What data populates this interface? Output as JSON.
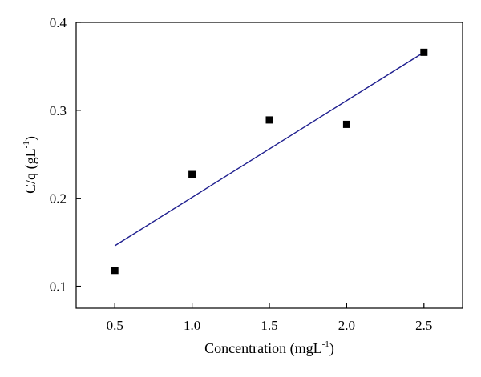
{
  "chart_data": {
    "type": "scatter",
    "xlabel": "Concentration (mgL",
    "xlabel_sup": "-1",
    "xlabel_end": ")",
    "ylabel": "C/q (gL",
    "ylabel_sup": "-1",
    "ylabel_end": ")",
    "xlim": [
      0.25,
      2.75
    ],
    "ylim": [
      0.075,
      0.4
    ],
    "x_ticks": [
      0.5,
      1.0,
      1.5,
      2.0,
      2.5
    ],
    "x_tick_labels": [
      "0.5",
      "1.0",
      "1.5",
      "2.0",
      "2.5"
    ],
    "y_ticks": [
      0.1,
      0.2,
      0.3,
      0.4
    ],
    "y_tick_labels": [
      "0.1",
      "0.2",
      "0.3",
      "0.4"
    ],
    "grid": false,
    "legend": "none",
    "series": [
      {
        "marker": "square",
        "color": "#000000",
        "x": [
          0.5,
          1.0,
          1.5,
          2.0,
          2.5
        ],
        "y": [
          0.118,
          0.227,
          0.289,
          0.284,
          0.366
        ]
      }
    ],
    "fit_line": {
      "color": "#1f1f8f",
      "x": [
        0.5,
        2.5
      ],
      "y": [
        0.146,
        0.366
      ]
    }
  }
}
